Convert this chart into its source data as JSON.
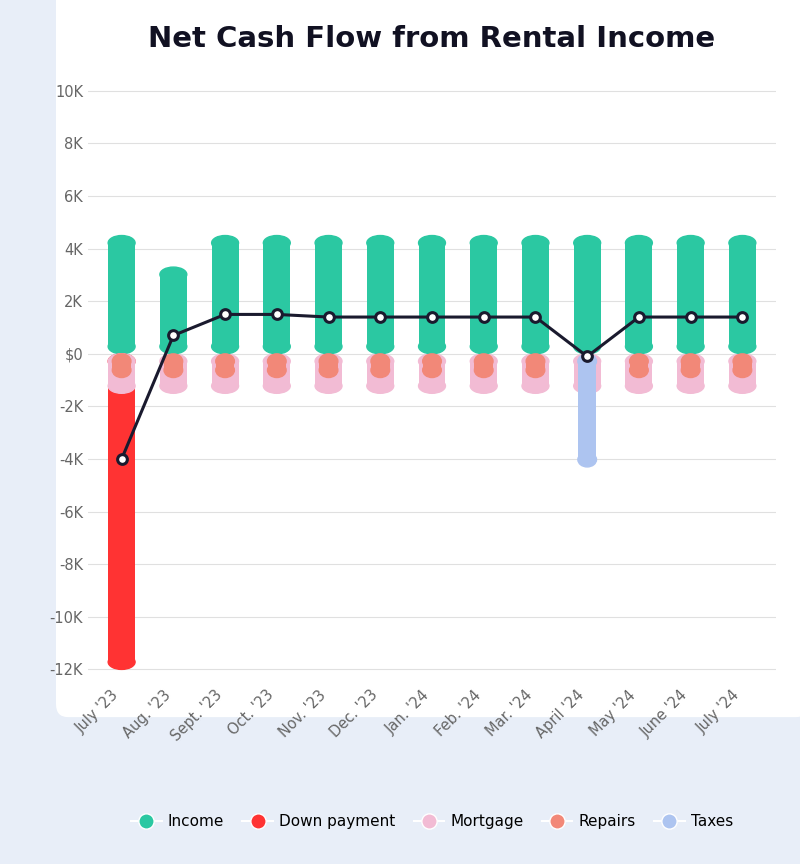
{
  "title": "Net Cash Flow from Rental Income",
  "categories": [
    "July '23",
    "Aug. '23",
    "Sept. '23",
    "Oct. '23",
    "Nov. '23",
    "Dec. '23",
    "Jan. '24",
    "Feb. '24",
    "Mar. '24",
    "April '24",
    "May '24",
    "June '24",
    "July '24"
  ],
  "income": [
    4500,
    3300,
    4500,
    4500,
    4500,
    4500,
    4500,
    4500,
    4500,
    4500,
    4500,
    4500,
    4500
  ],
  "down_payment": [
    -12000,
    0,
    0,
    0,
    0,
    0,
    0,
    0,
    0,
    0,
    0,
    0,
    0
  ],
  "mortgage": [
    -1500,
    -1500,
    -1500,
    -1500,
    -1500,
    -1500,
    -1500,
    -1500,
    -1500,
    -1500,
    -1500,
    -1500,
    -1500
  ],
  "repairs": [
    -900,
    -900,
    -900,
    -900,
    -900,
    -900,
    -900,
    -900,
    -900,
    -900,
    -900,
    -900,
    -900
  ],
  "taxes": [
    0,
    0,
    0,
    0,
    0,
    0,
    0,
    0,
    0,
    -4300,
    0,
    0,
    0
  ],
  "net_line": [
    -4000,
    700,
    1500,
    1500,
    1400,
    1400,
    1400,
    1400,
    1400,
    -100,
    1400,
    1400,
    1400
  ],
  "color_income": "#2bc8a2",
  "color_down": "#ff3333",
  "color_mortgage": "#f2bbd4",
  "color_repairs": "#f28878",
  "color_taxes": "#adc4f0",
  "color_net": "#1a1a2e",
  "color_background": "#e8eef8",
  "color_chart_bg": "#ffffff",
  "ylim_min": -12500,
  "ylim_max": 10500,
  "yticks": [
    -12000,
    -10000,
    -8000,
    -6000,
    -4000,
    -2000,
    0,
    2000,
    4000,
    6000,
    8000,
    10000
  ],
  "ytick_labels": [
    "-12K",
    "-10K",
    "-8K",
    "-6K",
    "-4K",
    "-2K",
    "$0",
    "2K",
    "4K",
    "6K",
    "8K",
    "10K"
  ],
  "legend_items": [
    "Income",
    "Down payment",
    "Mortgage",
    "Repairs",
    "Taxes"
  ],
  "legend_colors": [
    "#2bc8a2",
    "#ff3333",
    "#f2bbd4",
    "#f28878",
    "#adc4f0"
  ]
}
